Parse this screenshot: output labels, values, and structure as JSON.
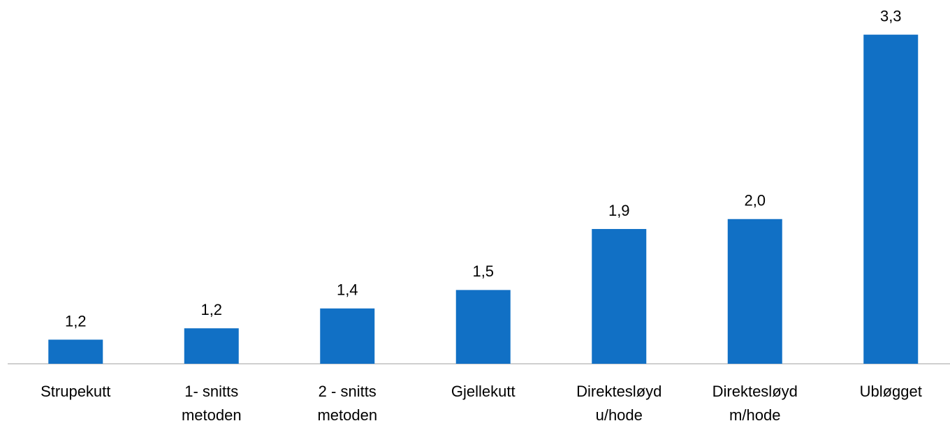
{
  "chart_data": {
    "type": "bar",
    "categories": [
      [
        "Strupekutt"
      ],
      [
        "1- snitts",
        "metoden"
      ],
      [
        "2 - snitts",
        "metoden"
      ],
      [
        "Gjellekutt"
      ],
      [
        "Direktesløyd",
        "u/hode"
      ],
      [
        "Direktesløyd",
        "m/hode"
      ],
      [
        "Ubløgget"
      ]
    ],
    "values": [
      1.15,
      1.23,
      1.37,
      1.5,
      1.93,
      2.0,
      3.3
    ],
    "value_labels": [
      "1,2",
      "1,2",
      "1,4",
      "1,5",
      "1,9",
      "2,0",
      "3,3"
    ],
    "color": "#1170c5",
    "ylim": [
      0.98,
      3.5
    ]
  }
}
